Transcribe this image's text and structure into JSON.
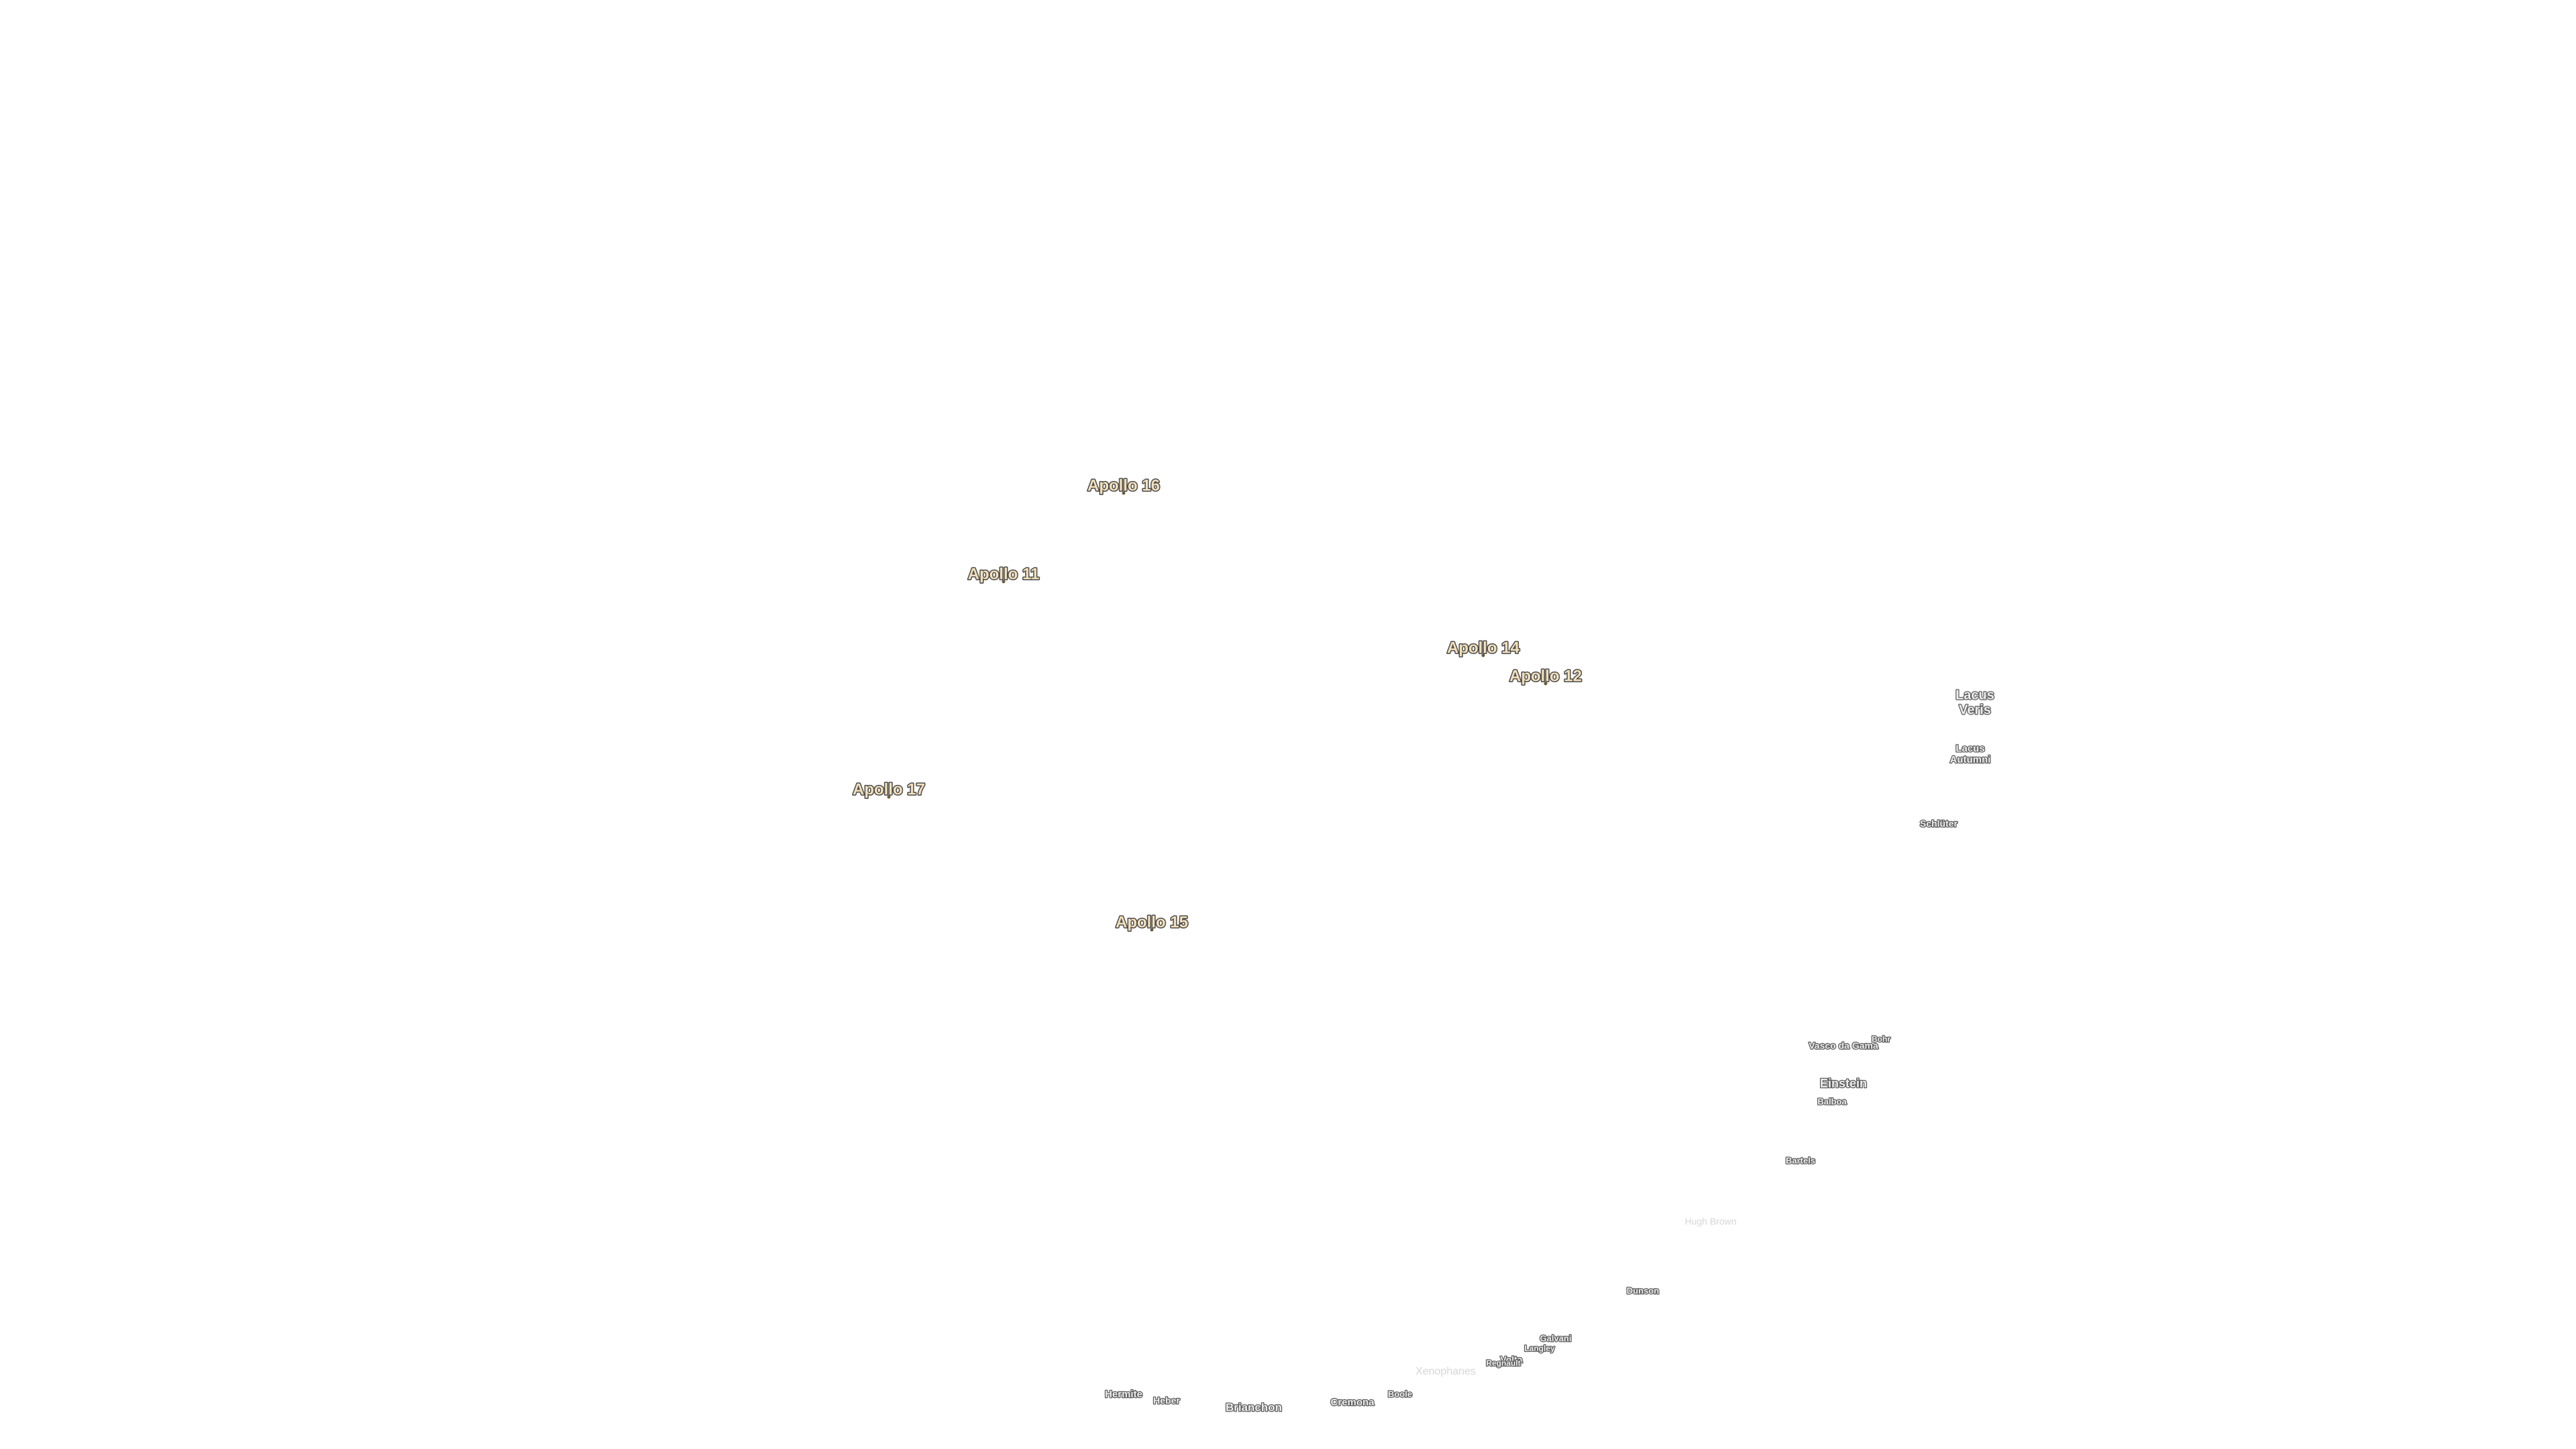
{
  "landing_sites": [
    "Apollo 16",
    "Apollo 11",
    "Apollo 14",
    "Apollo 12",
    "Apollo 17",
    "Apollo 15"
  ],
  "features": [
    [
      "Lacus",
      "Veris"
    ],
    [
      "Lacus",
      "Autumni"
    ],
    [
      "Schlüter"
    ],
    [
      "Vasco da Gama"
    ],
    [
      "Bohr"
    ],
    [
      "Einstein"
    ],
    [
      "Balboa"
    ],
    [
      "Bartels"
    ],
    [
      "Hugh Brown"
    ],
    [
      "Dunson"
    ],
    [
      "Galvani"
    ],
    [
      "Langley"
    ],
    [
      "Volta"
    ],
    [
      "Regnault"
    ],
    [
      "Xenophanes"
    ],
    [
      "Boole"
    ],
    [
      "Cremona"
    ],
    [
      "Brianchon"
    ],
    [
      "Hermite"
    ],
    [
      "Heber"
    ]
  ]
}
